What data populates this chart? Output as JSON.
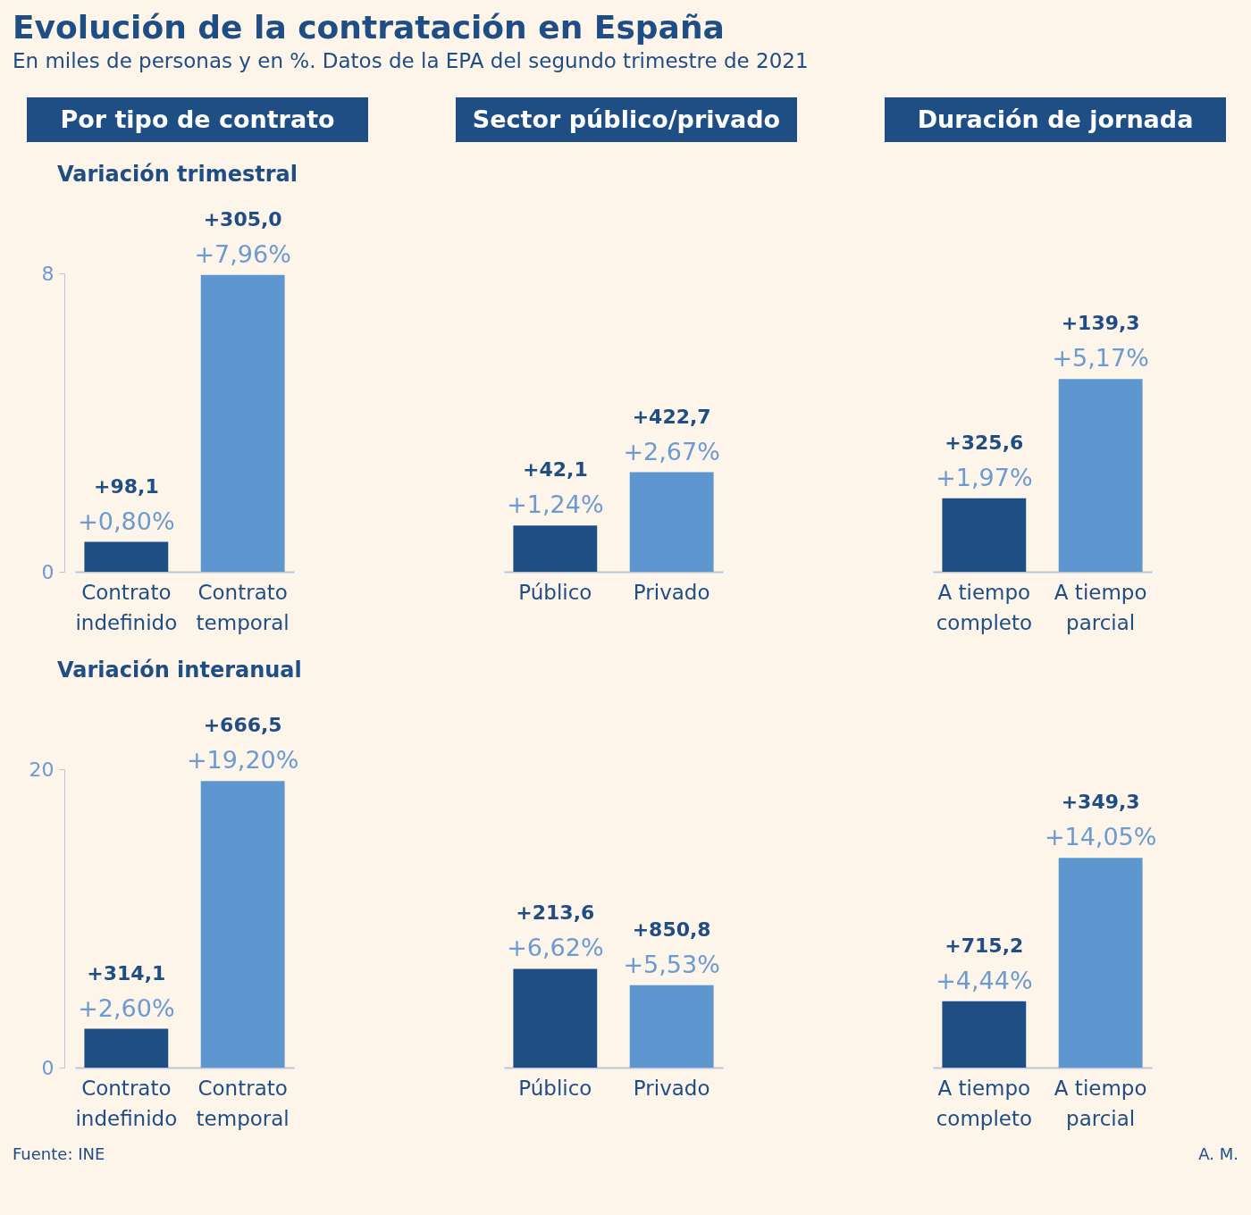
{
  "chart_data": [
    {
      "type": "other",
      "title": "Evolución de la contratación en España",
      "subtitle": "En miles de personas y en %. Datos de la EPA del segundo trimestre de 2021"
    },
    {
      "type": "bar",
      "title": "Por tipo de contrato",
      "subtitle": "Variación trimestral",
      "categories": [
        "Contrato indefinido",
        "Contrato temporal"
      ],
      "values": [
        0.8,
        7.96
      ],
      "colors": [
        "#1f4e85",
        "#5e97d0"
      ],
      "value_labels": [
        "+0,80%",
        "+7,96%"
      ],
      "annotations": [
        {
          "text": "+98,1",
          "x": "Contrato indefinido",
          "y": 0.8
        },
        {
          "text": "+305,0",
          "x": "Contrato temporal",
          "y": 7.96
        }
      ],
      "ylim": [
        0,
        8
      ],
      "yticks": [
        0,
        8
      ]
    },
    {
      "type": "bar",
      "title": "Sector público/privado",
      "categories": [
        "Público",
        "Privado"
      ],
      "values": [
        1.24,
        2.67
      ],
      "colors": [
        "#1f4e85",
        "#5e97d0"
      ],
      "value_labels": [
        "+1,24%",
        "+2,67%"
      ],
      "annotations": [
        {
          "text": "+42,1",
          "x": "Público",
          "y": 1.24
        },
        {
          "text": "+422,7",
          "x": "Privado",
          "y": 2.67
        }
      ],
      "ylim": [
        0,
        8
      ],
      "tick_labels": "x"
    },
    {
      "type": "bar",
      "title": "Duración de jornada",
      "categories": [
        "A tiempo completo",
        "A tiempo parcial"
      ],
      "values": [
        1.97,
        5.17
      ],
      "colors": [
        "#1f4e85",
        "#5e97d0"
      ],
      "value_labels": [
        "+1,97%",
        "+5,17%"
      ],
      "annotations": [
        {
          "text": "+325,6",
          "x": "A tiempo completo",
          "y": 1.97
        },
        {
          "text": "+139,3",
          "x": "A tiempo parcial",
          "y": 5.17
        }
      ],
      "ylim": [
        0,
        8
      ],
      "tick_labels": "x"
    },
    {
      "type": "bar",
      "subtitle": "Variación interanual",
      "categories": [
        "Contrato indefinido",
        "Contrato temporal"
      ],
      "values": [
        2.6,
        19.2
      ],
      "colors": [
        "#1f4e85",
        "#5e97d0"
      ],
      "value_labels": [
        "+2,60%",
        "+19,20%"
      ],
      "annotations": [
        {
          "text": "+314,1",
          "x": "Contrato indefinido",
          "y": 2.6
        },
        {
          "text": "+666,5",
          "x": "Contrato temporal",
          "y": 19.2
        },
        "Fuente: INE"
      ],
      "ylim": [
        0,
        20
      ],
      "yticks": [
        0,
        20
      ]
    },
    {
      "type": "bar",
      "categories": [
        "Público",
        "Privado"
      ],
      "values": [
        6.62,
        5.53
      ],
      "colors": [
        "#1f4e85",
        "#5e97d0"
      ],
      "value_labels": [
        "+6,62%",
        "+5,53%"
      ],
      "annotations": [
        {
          "text": "+213,6",
          "x": "Público",
          "y": 6.62
        },
        {
          "text": "+850,8",
          "x": "Privado",
          "y": 5.53
        }
      ],
      "tick_labels": "x"
    },
    {
      "type": "bar",
      "categories": [
        "A tiempo completo",
        "A tiempo parcial"
      ],
      "values": [
        4.44,
        14.05
      ],
      "colors": [
        "#1f4e85",
        "#5e97d0"
      ],
      "value_labels": [
        "+4,44%",
        "+14,05%"
      ],
      "annotations": [
        {
          "text": "+715,2",
          "x": "A tiempo completo",
          "y": 4.44
        },
        {
          "text": "+349,3",
          "x": "A tiempo parcial",
          "y": 14.05
        },
        "A. M."
      ],
      "tick_labels": "x"
    }
  ]
}
